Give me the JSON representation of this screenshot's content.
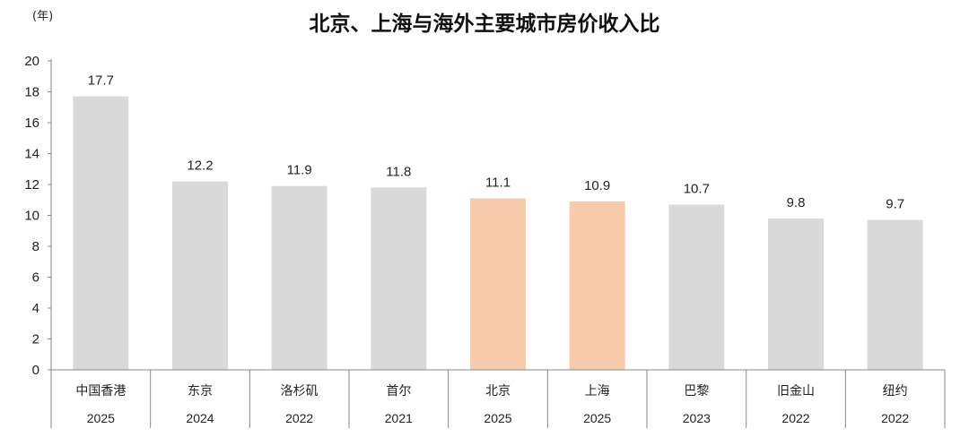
{
  "chart_data": {
    "type": "bar",
    "title": "北京、上海与海外主要城市房价收入比",
    "unit_label": "(年)",
    "ylim": [
      0,
      20
    ],
    "yticks": [
      0,
      2,
      4,
      6,
      8,
      10,
      12,
      14,
      16,
      18,
      20
    ],
    "grid": false,
    "categories": [
      "中国香港",
      "东京",
      "洛杉矶",
      "首尔",
      "北京",
      "上海",
      "巴黎",
      "旧金山",
      "纽约"
    ],
    "years": [
      "2025",
      "2024",
      "2022",
      "2021",
      "2025",
      "2025",
      "2023",
      "2022",
      "2022"
    ],
    "values": [
      17.7,
      12.2,
      11.9,
      11.8,
      11.1,
      10.9,
      10.7,
      9.8,
      9.7
    ],
    "value_labels": [
      "17.7",
      "12.2",
      "11.9",
      "11.8",
      "11.1",
      "10.9",
      "10.7",
      "9.8",
      "9.7"
    ],
    "highlight": [
      false,
      false,
      false,
      false,
      true,
      true,
      false,
      false,
      false
    ],
    "colors": {
      "default": "#d9d9d9",
      "highlight": "#f8cbad",
      "axis": "#888888"
    }
  }
}
